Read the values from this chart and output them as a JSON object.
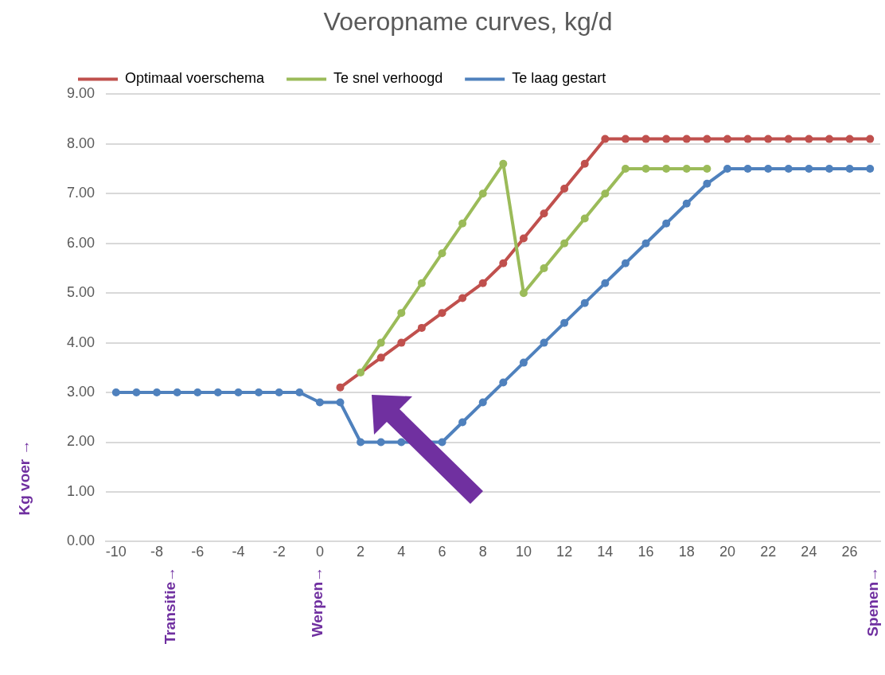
{
  "chart_data": {
    "type": "line",
    "title": "Voeropname curves, kg/d",
    "ylabel": "Kg voer →",
    "x": [
      -10,
      -9,
      -8,
      -7,
      -6,
      -5,
      -4,
      -3,
      -2,
      -1,
      0,
      1,
      2,
      3,
      4,
      5,
      6,
      7,
      8,
      9,
      10,
      11,
      12,
      13,
      14,
      15,
      16,
      17,
      18,
      19,
      20,
      21,
      22,
      23,
      24,
      25,
      26,
      27
    ],
    "series": [
      {
        "name": "Optimaal voerschema",
        "color": "#c0504d",
        "values": [
          null,
          null,
          null,
          null,
          null,
          null,
          null,
          null,
          null,
          null,
          null,
          3.1,
          null,
          3.7,
          4.0,
          4.3,
          4.6,
          4.9,
          5.2,
          5.6,
          6.1,
          6.6,
          7.1,
          7.6,
          8.1,
          8.1,
          8.1,
          8.1,
          8.1,
          8.1,
          8.1,
          8.1,
          8.1,
          8.1,
          8.1,
          8.1,
          8.1,
          8.1
        ]
      },
      {
        "name": "Te snel verhoogd",
        "color": "#9bbb59",
        "values": [
          null,
          null,
          null,
          null,
          null,
          null,
          null,
          null,
          null,
          null,
          null,
          null,
          3.4,
          4.0,
          4.6,
          5.2,
          5.8,
          6.4,
          7.0,
          7.6,
          5.0,
          5.5,
          6.0,
          6.5,
          7.0,
          7.5,
          7.5,
          7.5,
          7.5,
          7.5,
          null,
          null,
          null,
          null,
          null,
          null,
          null,
          null
        ]
      },
      {
        "name": "Te laag gestart",
        "color": "#4f81bd",
        "values": [
          3.0,
          3.0,
          3.0,
          3.0,
          3.0,
          3.0,
          3.0,
          3.0,
          3.0,
          3.0,
          2.8,
          2.8,
          2.0,
          2.0,
          2.0,
          null,
          2.0,
          2.4,
          2.8,
          3.2,
          3.6,
          4.0,
          4.4,
          4.8,
          5.2,
          5.6,
          6.0,
          6.4,
          6.8,
          7.2,
          7.5,
          7.5,
          7.5,
          7.5,
          7.5,
          7.5,
          7.5,
          7.5
        ]
      }
    ],
    "xlim": [
      -10.5,
      27.5
    ],
    "xticks": [
      -10,
      -8,
      -6,
      -4,
      -2,
      0,
      2,
      4,
      6,
      8,
      10,
      12,
      14,
      16,
      18,
      20,
      22,
      24,
      26
    ],
    "ylim": [
      0,
      9
    ],
    "yticks": [
      {
        "value": 0,
        "label": "0.00"
      },
      {
        "value": 1,
        "label": "1.00"
      },
      {
        "value": 2,
        "label": "2.00"
      },
      {
        "value": 3,
        "label": "3.00"
      },
      {
        "value": 4,
        "label": "4.00"
      },
      {
        "value": 5,
        "label": "5.00"
      },
      {
        "value": 6,
        "label": "6.00"
      },
      {
        "value": 7,
        "label": "7.00"
      },
      {
        "value": 8,
        "label": "8.00"
      },
      {
        "value": 9,
        "label": "9.00"
      }
    ],
    "annotations": [
      "Transitie→",
      "Werpen→",
      "Spenen→"
    ],
    "grid": "y",
    "legend": "top",
    "marker": "circle",
    "line_style": "solid"
  }
}
